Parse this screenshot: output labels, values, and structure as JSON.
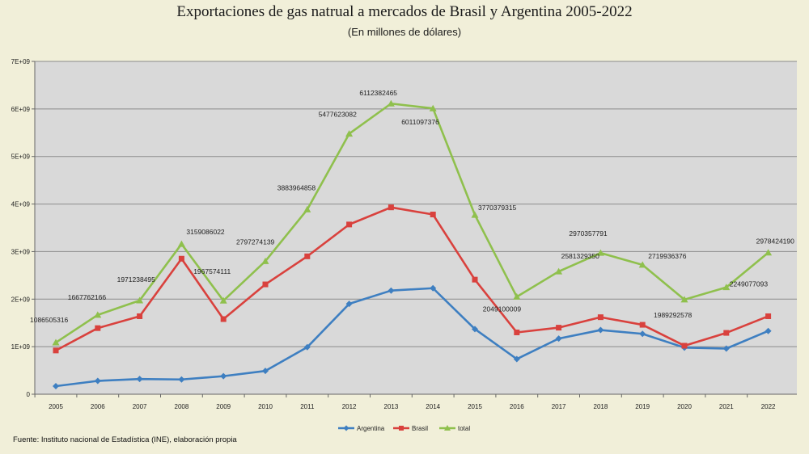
{
  "chart_data": {
    "type": "line",
    "title": "Exportaciones de gas natrual a mercados de Brasil y Argentina 2005-2022",
    "subtitle": "(En millones de dólares)",
    "categories": [
      "2005",
      "2006",
      "2007",
      "2008",
      "2009",
      "2010",
      "2011",
      "2012",
      "2013",
      "2014",
      "2015",
      "2016",
      "2017",
      "2018",
      "2019",
      "2020",
      "2021",
      "2022"
    ],
    "ylim": [
      0,
      7000000000
    ],
    "y_tick_labels": [
      "0",
      "1E+09",
      "2E+09",
      "3E+09",
      "4E+09",
      "5E+09",
      "6E+09",
      "7E+09"
    ],
    "grid": true,
    "legend_position": "bottom",
    "series": [
      {
        "name": "Argentina",
        "color": "#3e7fc1",
        "values": [
          170000000,
          280000000,
          320000000,
          310000000,
          380000000,
          490000000,
          990000000,
          1900000000,
          2180000000,
          2230000000,
          1370000000,
          740000000,
          1170000000,
          1350000000,
          1270000000,
          980000000,
          960000000,
          1330000000
        ]
      },
      {
        "name": "Brasil",
        "color": "#d9413d",
        "values": [
          920000000,
          1390000000,
          1640000000,
          2850000000,
          1580000000,
          2310000000,
          2900000000,
          3570000000,
          3930000000,
          3780000000,
          2410000000,
          1300000000,
          1400000000,
          1620000000,
          1460000000,
          1020000000,
          1290000000,
          1640000000
        ]
      },
      {
        "name": "total",
        "color": "#8fc04d",
        "values": [
          1086505316,
          1667762166,
          1971238495,
          3159086022,
          1967574111,
          2797274139,
          3883964858,
          5477623082,
          6112382465,
          6011097376,
          3770379315,
          2049100009,
          2581329350,
          2970357791,
          2719936376,
          1989292578,
          2249077093,
          2978424190
        ]
      }
    ],
    "annotations": [
      "1086505316",
      "1667762166",
      "1971238495",
      "3159086022",
      "1967574111",
      "2797274139",
      "3883964858",
      "5477623082",
      "6112382465",
      "6011097376",
      "3770379315",
      "2049100009",
      "2581329350",
      "2970357791",
      "2719936376",
      "1989292578",
      "2249077093",
      "2978424190"
    ]
  },
  "footer": {
    "source": "Fuente: Instituto nacional de Estadística (INE), elaboración propia"
  }
}
